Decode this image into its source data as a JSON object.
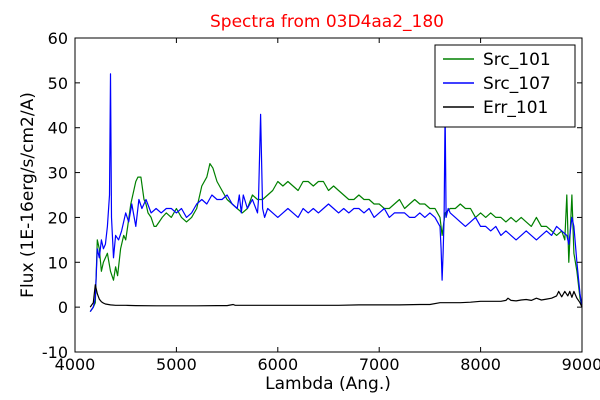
{
  "chart_data": {
    "type": "line",
    "title": "Spectra from 03D4aa2_180",
    "title_color": "#ff0000",
    "xlabel": "Lambda (Ang.)",
    "ylabel": "Flux (1E-16erg/s/cm2/A)",
    "xlim": [
      4000,
      9000
    ],
    "ylim": [
      -10,
      60
    ],
    "x_ticks": [
      4000,
      5000,
      6000,
      7000,
      8000,
      9000
    ],
    "y_ticks": [
      -10,
      0,
      10,
      20,
      30,
      40,
      50,
      60
    ],
    "grid": false,
    "legend_position": "top-right",
    "series": [
      {
        "name": "Src_101",
        "color": "#008000",
        "x": [
          4150,
          4180,
          4200,
          4220,
          4240,
          4260,
          4280,
          4300,
          4320,
          4350,
          4380,
          4400,
          4420,
          4450,
          4480,
          4500,
          4520,
          4550,
          4580,
          4600,
          4620,
          4650,
          4680,
          4700,
          4720,
          4750,
          4780,
          4800,
          4830,
          4860,
          4900,
          4950,
          5000,
          5050,
          5100,
          5150,
          5200,
          5250,
          5300,
          5330,
          5360,
          5400,
          5450,
          5500,
          5550,
          5600,
          5650,
          5700,
          5750,
          5800,
          5850,
          5900,
          5950,
          6000,
          6050,
          6100,
          6150,
          6200,
          6250,
          6300,
          6350,
          6400,
          6450,
          6500,
          6550,
          6600,
          6650,
          6700,
          6750,
          6800,
          6850,
          6900,
          6950,
          7000,
          7050,
          7100,
          7150,
          7200,
          7250,
          7300,
          7350,
          7400,
          7450,
          7500,
          7550,
          7600,
          7620,
          7650,
          7700,
          7750,
          7800,
          7850,
          7900,
          7950,
          8000,
          8050,
          8100,
          8150,
          8200,
          8250,
          8300,
          8350,
          8400,
          8450,
          8500,
          8550,
          8600,
          8650,
          8700,
          8750,
          8800,
          8830,
          8850,
          8870,
          8900,
          8920,
          8950,
          8980,
          9000
        ],
        "values": [
          -1,
          0,
          1,
          15,
          13,
          8,
          10,
          11,
          12,
          8,
          6,
          9,
          7,
          13,
          16,
          15,
          18,
          23,
          26,
          28,
          29,
          29,
          24,
          23,
          21,
          20,
          18,
          18,
          19,
          20,
          21,
          20,
          22,
          20,
          19,
          20,
          22,
          27,
          29,
          32,
          31,
          28,
          26,
          24,
          23,
          22,
          21,
          22,
          25,
          24,
          24,
          25,
          26,
          28,
          27,
          28,
          27,
          26,
          28,
          28,
          27,
          28,
          28,
          26,
          27,
          26,
          25,
          24,
          24,
          25,
          24,
          24,
          23,
          23,
          22,
          22,
          23,
          24,
          22,
          23,
          24,
          23,
          23,
          22,
          22,
          20,
          16,
          21,
          22,
          22,
          23,
          22,
          22,
          20,
          21,
          20,
          21,
          20,
          20,
          19,
          20,
          19,
          20,
          19,
          18,
          20,
          18,
          18,
          17,
          16,
          17,
          15,
          25,
          10,
          25,
          12,
          8,
          2,
          0
        ]
      },
      {
        "name": "Src_107",
        "color": "#0000ff",
        "x": [
          4150,
          4180,
          4200,
          4220,
          4240,
          4260,
          4280,
          4300,
          4320,
          4340,
          4350,
          4360,
          4380,
          4400,
          4430,
          4460,
          4500,
          4530,
          4560,
          4600,
          4630,
          4660,
          4700,
          4750,
          4800,
          4850,
          4900,
          4950,
          5000,
          5050,
          5100,
          5150,
          5200,
          5250,
          5300,
          5350,
          5400,
          5450,
          5500,
          5550,
          5600,
          5620,
          5640,
          5660,
          5700,
          5750,
          5800,
          5810,
          5830,
          5850,
          5870,
          5900,
          5950,
          6000,
          6050,
          6100,
          6150,
          6200,
          6250,
          6300,
          6350,
          6400,
          6450,
          6500,
          6550,
          6600,
          6650,
          6700,
          6750,
          6800,
          6850,
          6900,
          6950,
          7000,
          7050,
          7100,
          7150,
          7200,
          7250,
          7300,
          7350,
          7400,
          7450,
          7500,
          7550,
          7600,
          7610,
          7620,
          7630,
          7640,
          7650,
          7660,
          7680,
          7700,
          7750,
          7800,
          7850,
          7900,
          7950,
          8000,
          8050,
          8100,
          8150,
          8200,
          8250,
          8300,
          8350,
          8400,
          8450,
          8500,
          8550,
          8600,
          8650,
          8700,
          8750,
          8800,
          8850,
          8870,
          8900,
          8920,
          8950,
          8980,
          9000
        ],
        "values": [
          -1,
          0,
          2,
          13,
          11,
          15,
          13,
          14,
          18,
          25,
          52,
          20,
          11,
          16,
          15,
          17,
          21,
          19,
          23,
          18,
          24,
          22,
          24,
          21,
          22,
          21,
          22,
          22,
          21,
          22,
          20,
          21,
          23,
          24,
          23,
          25,
          24,
          24,
          25,
          23,
          22,
          25,
          21,
          25,
          22,
          24,
          21,
          24,
          43,
          22,
          20,
          22,
          21,
          20,
          21,
          22,
          21,
          20,
          22,
          21,
          22,
          21,
          22,
          23,
          22,
          21,
          22,
          21,
          22,
          22,
          21,
          22,
          20,
          21,
          22,
          20,
          21,
          21,
          21,
          20,
          20,
          21,
          20,
          21,
          20,
          18,
          13,
          6,
          12,
          20,
          44,
          20,
          22,
          21,
          20,
          19,
          18,
          19,
          20,
          18,
          18,
          17,
          18,
          16,
          17,
          16,
          15,
          16,
          17,
          16,
          15,
          16,
          17,
          16,
          18,
          17,
          16,
          14,
          20,
          18,
          10,
          3,
          0
        ]
      },
      {
        "name": "Err_101",
        "color": "#000000",
        "x": [
          4150,
          4180,
          4200,
          4220,
          4240,
          4260,
          4280,
          4300,
          4350,
          4400,
          4500,
          4600,
          4800,
          5000,
          5200,
          5400,
          5500,
          5560,
          5580,
          5600,
          5800,
          6000,
          6200,
          6400,
          6600,
          6800,
          7000,
          7200,
          7400,
          7500,
          7600,
          7700,
          7800,
          7900,
          8000,
          8100,
          8200,
          8250,
          8270,
          8300,
          8350,
          8400,
          8450,
          8500,
          8550,
          8600,
          8650,
          8700,
          8750,
          8770,
          8800,
          8830,
          8860,
          8880,
          8900,
          8920,
          8950,
          8980,
          9000
        ],
        "values": [
          0,
          1,
          5,
          3,
          1.8,
          1.2,
          0.9,
          0.7,
          0.5,
          0.4,
          0.4,
          0.35,
          0.3,
          0.3,
          0.3,
          0.35,
          0.35,
          0.6,
          0.4,
          0.4,
          0.4,
          0.4,
          0.4,
          0.4,
          0.4,
          0.5,
          0.5,
          0.5,
          0.6,
          0.6,
          1.0,
          1.0,
          1.0,
          1.1,
          1.3,
          1.3,
          1.3,
          1.5,
          2.0,
          1.5,
          1.4,
          1.6,
          1.7,
          1.5,
          2.0,
          1.6,
          1.8,
          2.0,
          2.5,
          3.5,
          2.3,
          3.5,
          2.5,
          3.5,
          2.2,
          3.5,
          2.0,
          1.0,
          0
        ]
      }
    ]
  }
}
